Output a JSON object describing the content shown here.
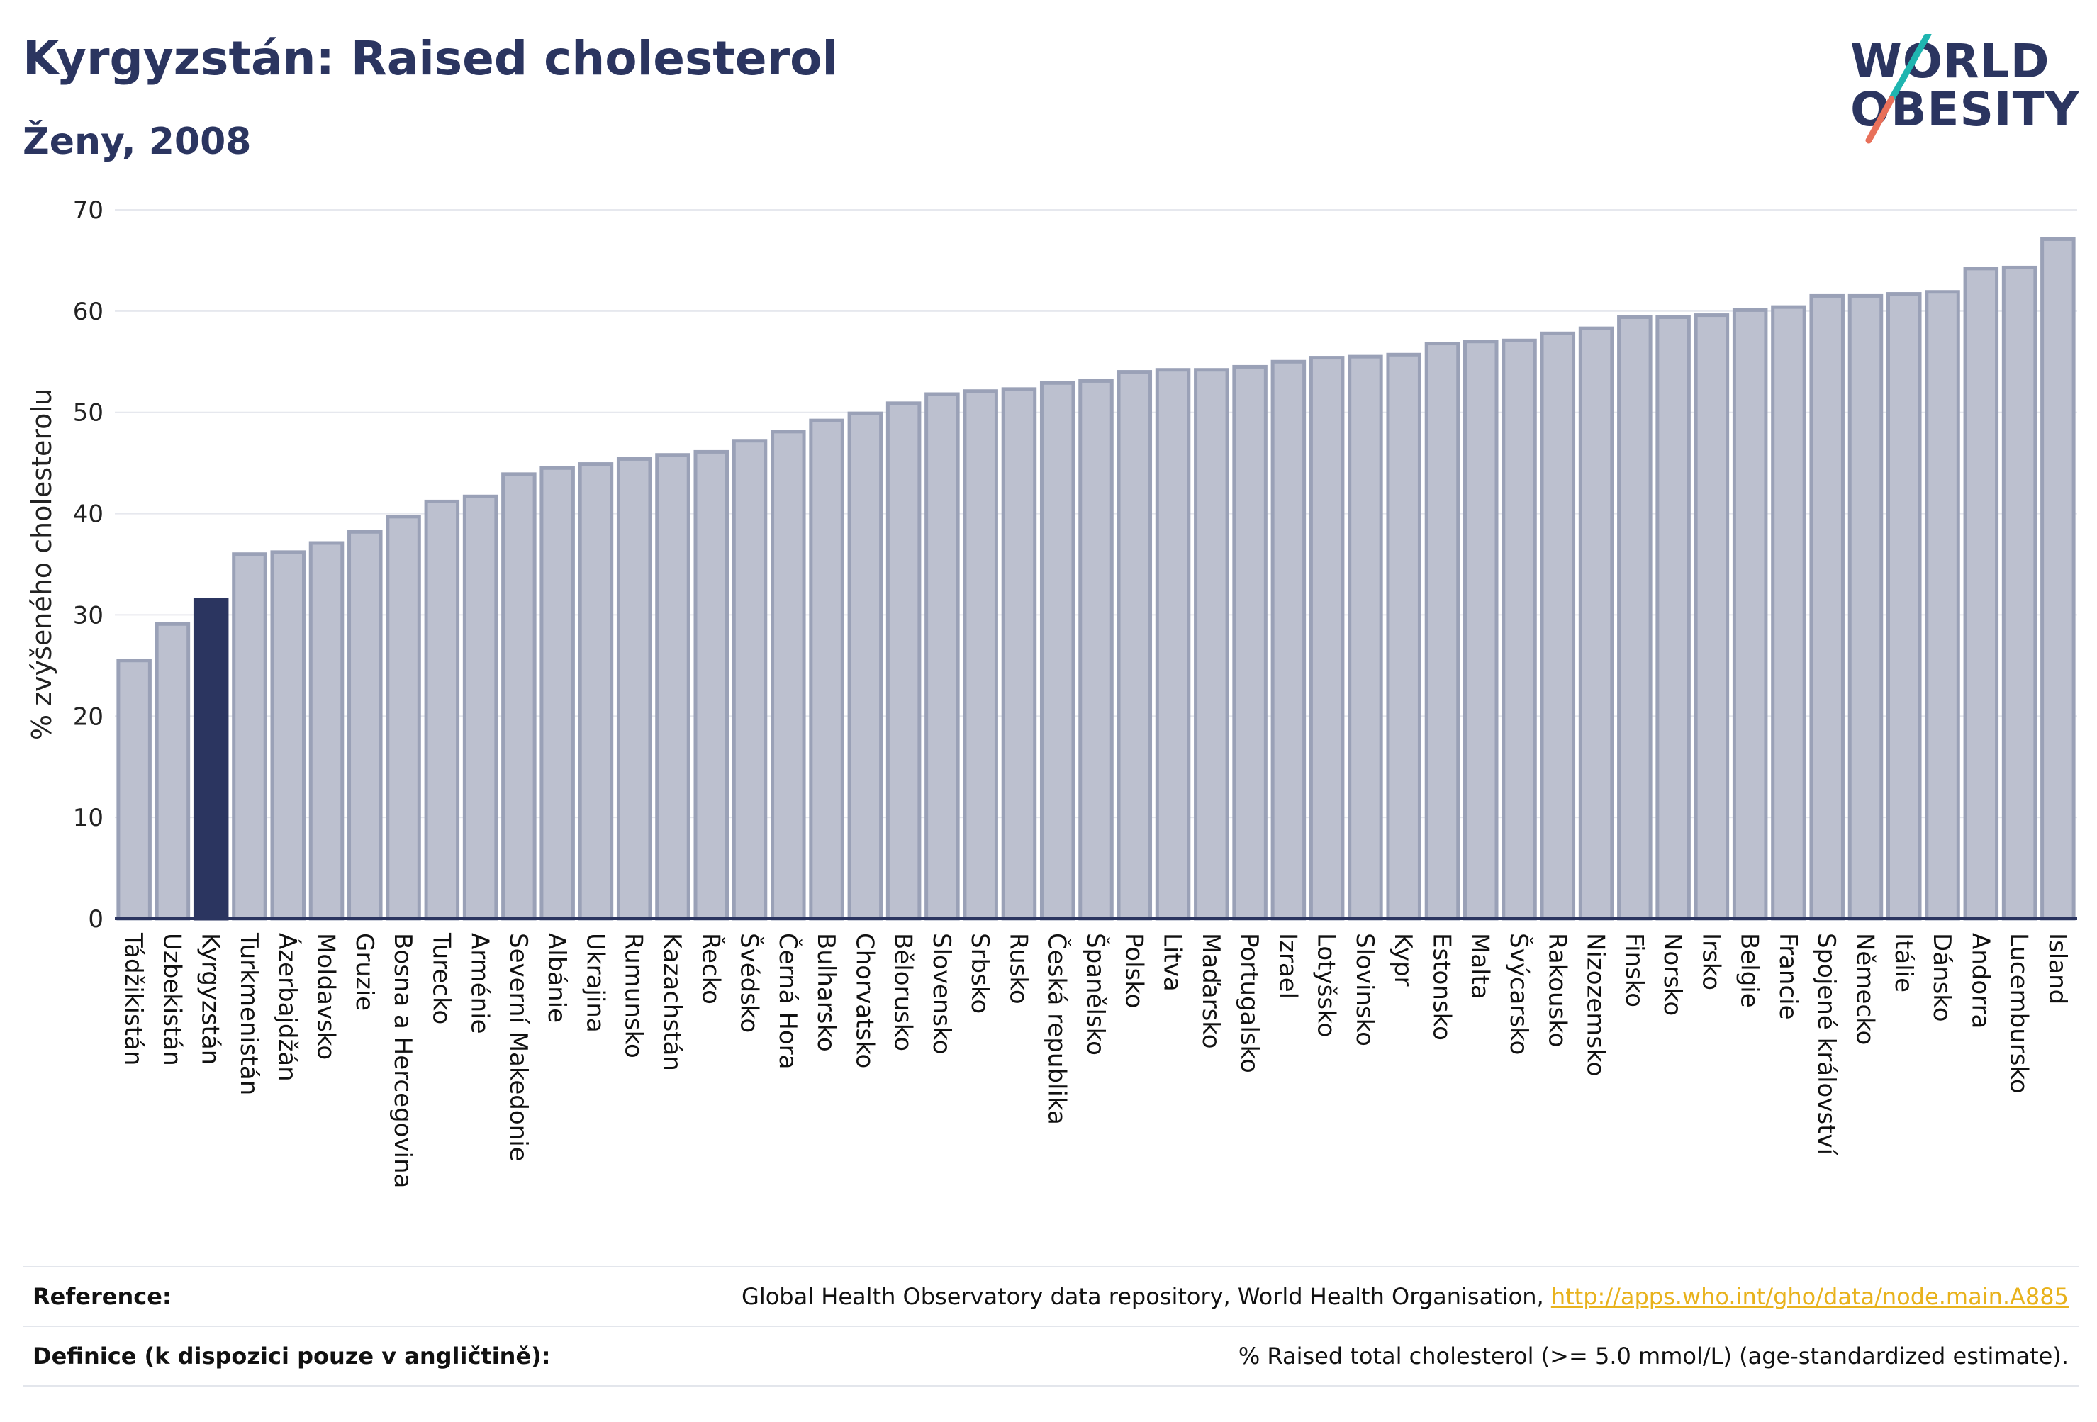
{
  "header": {
    "title": "Kyrgyzstán: Raised cholesterol",
    "subtitle": "Ženy, 2008"
  },
  "logo": {
    "line1": "WORLD",
    "line2": "OBESITY",
    "colors": {
      "text": "#2b3560",
      "slash_top": "#1fb5b0",
      "slash_bottom": "#e8705a"
    }
  },
  "colors": {
    "bar": "#bcc0cf",
    "bar_stroke": "#9aa1b7",
    "highlight": "#2b3560",
    "grid": "#e6e8ee",
    "axis": "#2b3560"
  },
  "chart_data": {
    "type": "bar",
    "ylabel": "% zvýšeného cholesterolu",
    "ylim": [
      0,
      70
    ],
    "yticks": [
      0,
      10,
      20,
      30,
      40,
      50,
      60,
      70
    ],
    "grid": true,
    "highlight": "Kyrgyzstán",
    "categories": [
      "Tádžikistán",
      "Uzbekistán",
      "Kyrgyzstán",
      "Turkmenistán",
      "Ázerbajdžán",
      "Moldavsko",
      "Gruzie",
      "Bosna a Hercegovina",
      "Turecko",
      "Arménie",
      "Severní Makedonie",
      "Albánie",
      "Ukrajina",
      "Rumunsko",
      "Kazachstán",
      "Řecko",
      "Švédsko",
      "Černá Hora",
      "Bulharsko",
      "Chorvatsko",
      "Bělorusko",
      "Slovensko",
      "Srbsko",
      "Rusko",
      "Česká republika",
      "Španělsko",
      "Polsko",
      "Litva",
      "Maďarsko",
      "Portugalsko",
      "Izrael",
      "Lotyšsko",
      "Slovinsko",
      "Kypr",
      "Estonsko",
      "Malta",
      "Švýcarsko",
      "Rakousko",
      "Nizozemsko",
      "Finsko",
      "Norsko",
      "Irsko",
      "Belgie",
      "Francie",
      "Spojené království",
      "Německo",
      "Itálie",
      "Dánsko",
      "Andorra",
      "Lucembursko",
      "Island"
    ],
    "values": [
      25.5,
      29.1,
      31.5,
      36.0,
      36.2,
      37.1,
      38.2,
      39.7,
      41.2,
      41.7,
      43.9,
      44.5,
      44.9,
      45.4,
      45.8,
      46.1,
      47.2,
      48.1,
      49.2,
      49.9,
      50.9,
      51.8,
      52.1,
      52.3,
      52.9,
      53.1,
      54.0,
      54.2,
      54.2,
      54.5,
      55.0,
      55.4,
      55.5,
      55.7,
      56.8,
      57.0,
      57.1,
      57.8,
      58.3,
      59.4,
      59.4,
      59.6,
      60.1,
      60.4,
      61.5,
      61.5,
      61.7,
      61.9,
      64.2,
      64.3,
      67.1
    ]
  },
  "footer": {
    "reference_label": "Reference:",
    "reference_text": "Global Health Observatory data repository, World Health Organisation, ",
    "reference_link": "http://apps.who.int/gho/data/node.main.A885",
    "definition_label": "Definice (k dispozici pouze v angličtině):",
    "definition_text": "% Raised total cholesterol (>= 5.0 mmol/L) (age-standardized estimate)."
  }
}
